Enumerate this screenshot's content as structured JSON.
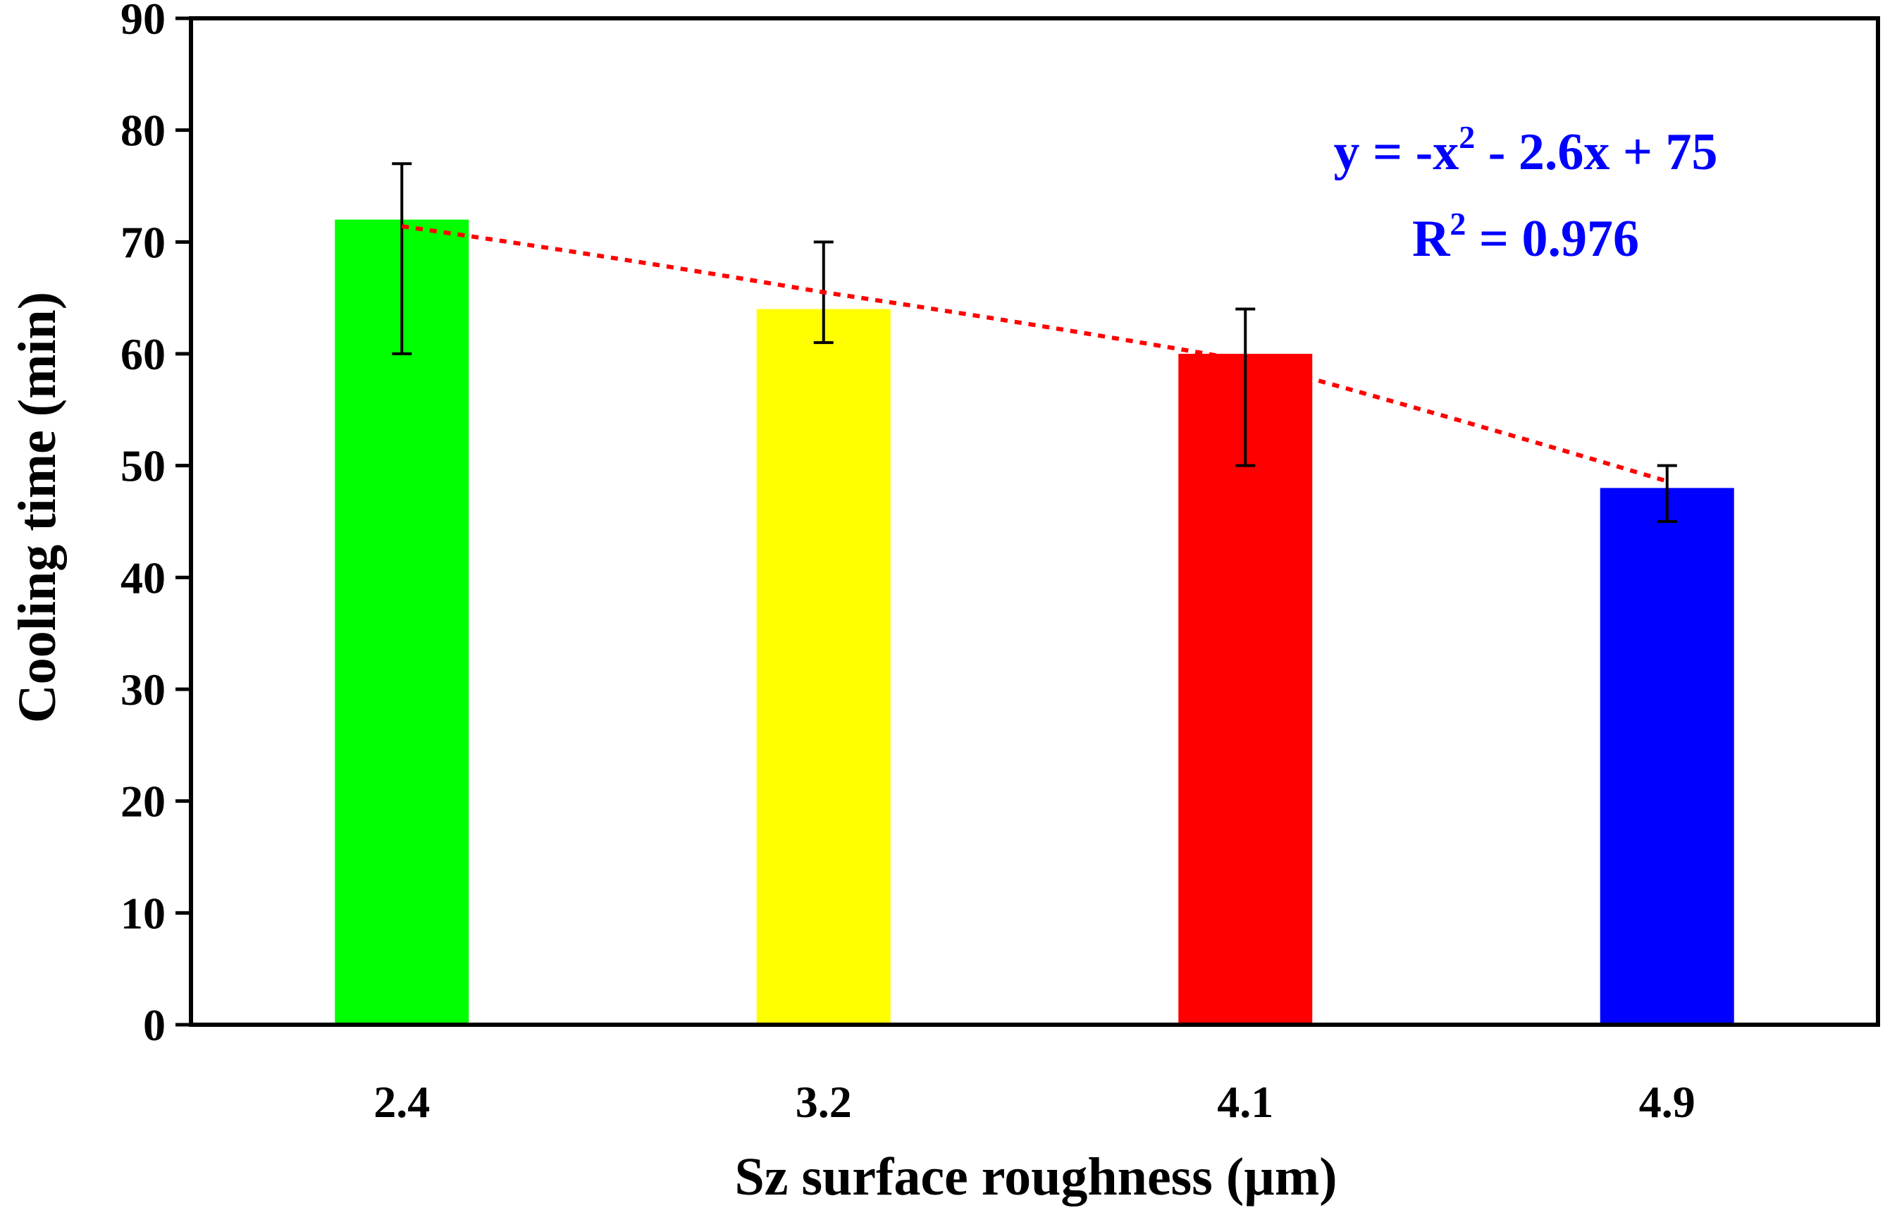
{
  "chart_data": {
    "type": "bar",
    "title": "",
    "xlabel": "Sz surface roughness (µm)",
    "ylabel": "Cooling time (min)",
    "ylim": [
      0,
      90
    ],
    "yticks": [
      0,
      10,
      20,
      30,
      40,
      50,
      60,
      70,
      80,
      90
    ],
    "categories": [
      "2.4",
      "3.2",
      "4.1",
      "4.9"
    ],
    "values": [
      72,
      64,
      60,
      48
    ],
    "error_low": [
      60,
      61,
      50,
      45
    ],
    "error_high": [
      77,
      70,
      64,
      50
    ],
    "bar_colors": [
      "#00ff00",
      "#ffff00",
      "#ff0000",
      "#0000ff"
    ],
    "trendline": {
      "type": "polynomial",
      "values": [
        71.4,
        65.5,
        59.4,
        48.6
      ],
      "color": "#ff0000",
      "style": "dotted"
    },
    "annotation": {
      "color": "#0000ff",
      "equation_prefix": "y = -x",
      "equation_exp": "2",
      "equation_suffix": " - 2.6x + 75",
      "r2_prefix": "R",
      "r2_exp": "2",
      "r2_suffix": " = 0.976"
    },
    "grid": false,
    "legend": "none"
  }
}
